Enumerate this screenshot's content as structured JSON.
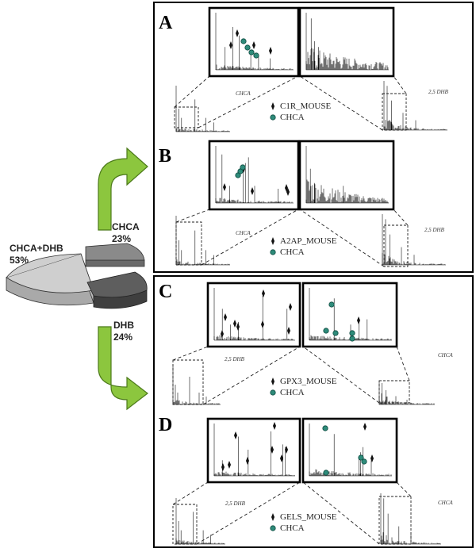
{
  "pie": {
    "slices": [
      {
        "label": "CHCA+DHB",
        "value": "53%",
        "percent": 53,
        "color": "#cfcfcf"
      },
      {
        "label": "CHCA",
        "value": "23%",
        "percent": 23,
        "color": "#8a8a8a"
      },
      {
        "label": "DHB",
        "value": "24%",
        "percent": 24,
        "color": "#5e5e5e"
      }
    ]
  },
  "arrow_color": "#8cc63e",
  "marker_color": "#2e8b7a",
  "panels": [
    {
      "letter": "A",
      "left_matrix": "CHCA",
      "right_matrix": "2,5 DHB",
      "protein": "C1R_MOUSE",
      "matrix_legend": "CHCA"
    },
    {
      "letter": "B",
      "left_matrix": "CHCA",
      "right_matrix": "2,5 DHB",
      "protein": "A2AP_MOUSE",
      "matrix_legend": "CHCA"
    },
    {
      "letter": "C",
      "left_matrix": "2,5 DHB",
      "right_matrix": "CHCA",
      "protein": "GPX3_MOUSE",
      "matrix_legend": "CHCA"
    },
    {
      "letter": "D",
      "left_matrix": "2,5 DHB",
      "right_matrix": "CHCA",
      "protein": "GELS_MOUSE",
      "matrix_legend": "CHCA"
    }
  ]
}
